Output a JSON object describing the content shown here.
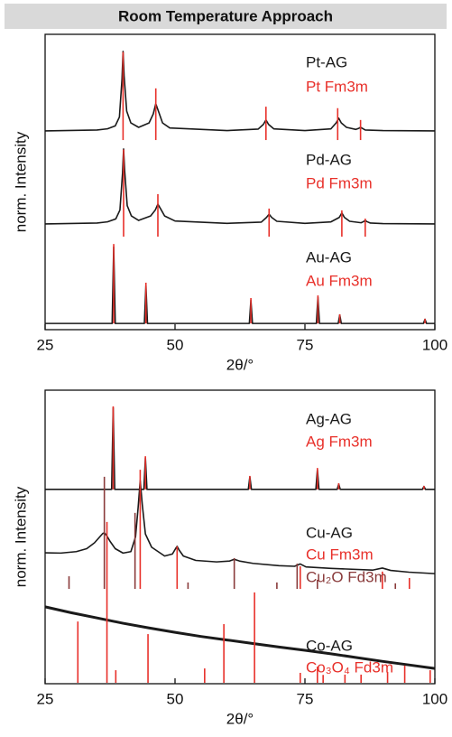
{
  "header": {
    "title": "Room Temperature Approach"
  },
  "chart_data": [
    {
      "type": "line",
      "xlabel": "2θ/°",
      "ylabel": "norm. Intensity",
      "xlim": [
        25,
        100
      ],
      "xticks": [
        25,
        50,
        75,
        100
      ],
      "ylim": [
        0,
        100
      ],
      "series": [
        {
          "name": "Pt-AG",
          "style": "line",
          "color": "#1a1a1a",
          "x": [
            25,
            35,
            37,
            38.5,
            39.3,
            39.8,
            40,
            40.2,
            40.7,
            41.5,
            43,
            45,
            45.8,
            46.3,
            46.8,
            47.6,
            49,
            60,
            66,
            67,
            67.5,
            68,
            69,
            75,
            80,
            81,
            81.5,
            82,
            83,
            84.8,
            85.4,
            85.7,
            86,
            86.6,
            90,
            100
          ],
          "values": [
            67.3,
            67.6,
            68,
            69,
            72,
            85,
            94.2,
            86,
            74,
            70,
            68.5,
            70,
            73,
            76.5,
            74,
            70,
            68.3,
            67.4,
            67.9,
            69.5,
            71,
            69.5,
            68,
            67.4,
            68,
            70,
            71.6,
            70,
            68.5,
            67.8,
            68.2,
            68.5,
            68.2,
            67.6,
            67.4,
            67.3
          ]
        },
        {
          "name": "Pt Fm3m",
          "style": "sticks",
          "color": "#e8302a",
          "base": 64.2,
          "x": [
            40,
            46.3,
            67.5,
            81.3,
            85.7
          ],
          "values": [
            94,
            81.7,
            75.5,
            75,
            71
          ]
        },
        {
          "name": "Pd-AG",
          "style": "line",
          "color": "#1a1a1a",
          "x": [
            25,
            35,
            37,
            38.6,
            39.4,
            39.9,
            40.1,
            40.3,
            40.8,
            41.6,
            43,
            45.3,
            46.2,
            46.7,
            47.2,
            48,
            50,
            60,
            66.6,
            67.6,
            68.1,
            68.6,
            69.6,
            75,
            80,
            81.6,
            82.1,
            82.6,
            83.6,
            85.8,
            86.3,
            86.6,
            86.9,
            87.6,
            90,
            100
          ],
          "values": [
            35.8,
            36.1,
            36.5,
            37.5,
            40.5,
            53,
            61.2,
            54,
            42,
            38.5,
            37,
            38.5,
            40.5,
            42.5,
            41,
            38.5,
            36.8,
            36,
            36.4,
            38,
            39.1,
            38,
            36.7,
            36,
            36.5,
            38,
            39.5,
            38,
            36.7,
            36.2,
            36.6,
            37,
            36.6,
            36.1,
            35.9,
            35.8
          ]
        },
        {
          "name": "Pd Fm3m",
          "style": "sticks",
          "color": "#e8302a",
          "base": 31.5,
          "x": [
            40.1,
            46.7,
            68.1,
            82.1,
            86.6
          ],
          "values": [
            61,
            45.9,
            41,
            40.4,
            37.6
          ]
        },
        {
          "name": "Au-AG",
          "style": "line",
          "color": "#1a1a1a",
          "x": [
            25,
            37.9,
            38.2,
            38.5,
            44.1,
            44.4,
            44.7,
            64.3,
            64.6,
            64.9,
            77.2,
            77.5,
            77.8,
            81.4,
            81.7,
            82,
            97.8,
            98.1,
            98.4,
            100
          ],
          "values": [
            2.1,
            2.1,
            28,
            2.1,
            2.1,
            15,
            2.1,
            2.1,
            10,
            2.1,
            2.1,
            11,
            2.1,
            2.1,
            5,
            2.1,
            2.1,
            3.5,
            2.1,
            2.1
          ]
        },
        {
          "name": "Au Fm3m",
          "style": "sticks",
          "color": "#e8302a",
          "base": 2.1,
          "x": [
            38.2,
            44.4,
            64.6,
            77.5,
            81.7,
            98.1
          ],
          "values": [
            29,
            15.9,
            10.7,
            11.6,
            5.2,
            3.7
          ]
        }
      ]
    },
    {
      "type": "line",
      "xlabel": "2θ/°",
      "ylabel": "norm. Intensity",
      "xlim": [
        25,
        100
      ],
      "xticks": [
        25,
        50,
        75,
        100
      ],
      "ylim": [
        0,
        100
      ],
      "series": [
        {
          "name": "Ag-AG",
          "style": "line",
          "color": "#1a1a1a",
          "x": [
            25,
            37.8,
            38.1,
            38.4,
            44,
            44.3,
            44.6,
            64.1,
            64.4,
            64.7,
            77.1,
            77.4,
            77.7,
            81.2,
            81.5,
            81.8,
            97.6,
            97.9,
            98.2,
            100
          ],
          "values": [
            66.2,
            66.2,
            94,
            66.2,
            66.2,
            77,
            66.2,
            66.2,
            70.5,
            66.2,
            66.2,
            73,
            66.2,
            66.2,
            68,
            66.2,
            66.2,
            67.2,
            66.2,
            66.2
          ]
        },
        {
          "name": "Ag Fm3m",
          "style": "sticks",
          "color": "#e8302a",
          "base": 66.2,
          "x": [
            38.1,
            44.3,
            64.4,
            77.4,
            81.5,
            97.9
          ],
          "values": [
            94.5,
            77.5,
            70.8,
            73.5,
            68.3,
            67.4
          ]
        },
        {
          "name": "Cu-AG",
          "style": "line",
          "color": "#1a1a1a",
          "x": [
            25,
            28,
            31,
            33,
            34.5,
            35.5,
            36.1,
            36.4,
            36.8,
            37.5,
            38.5,
            40,
            41.5,
            42.4,
            42.9,
            43.3,
            43.7,
            44.3,
            45.5,
            48,
            49.5,
            50.1,
            50.4,
            50.8,
            51.6,
            54,
            58,
            60.5,
            61.4,
            62.4,
            65,
            70,
            73,
            74.1,
            75.2,
            80,
            88,
            89.9,
            91.5,
            95,
            100
          ],
          "values": [
            44.6,
            44.5,
            45,
            46,
            48,
            50,
            51.2,
            51.4,
            50.6,
            48.5,
            46,
            44.5,
            45,
            50,
            60,
            69.2,
            61,
            51,
            46.5,
            43.5,
            44.2,
            46,
            46.8,
            45.5,
            43.5,
            42,
            41.5,
            41.8,
            42.4,
            41.8,
            41,
            40.2,
            40,
            40.8,
            39.8,
            39.3,
            38.7,
            39.4,
            38.6,
            38,
            37.5
          ]
        },
        {
          "name": "Cu Fm3m",
          "style": "sticks",
          "color": "#e8302a",
          "base": 32.3,
          "x": [
            43.3,
            50.4,
            74.1,
            89.9,
            95.1
          ],
          "values": [
            72.9,
            46.8,
            40,
            38.2,
            36
          ]
        },
        {
          "name": "Cu₂O Fd3m",
          "style": "sticks",
          "color": "#8a3b3b",
          "base": 32.3,
          "x": [
            29.6,
            36.4,
            42.3,
            52.5,
            61.4,
            69.6,
            73.5,
            77.4,
            92.4
          ],
          "values": [
            36.6,
            70.5,
            58.2,
            34.5,
            42.8,
            34.5,
            40.9,
            35.4,
            34.2
          ]
        },
        {
          "name": "Co-AG",
          "style": "line",
          "color": "#1a1a1a",
          "x": [
            25,
            30,
            35,
            40,
            45,
            50,
            55,
            60,
            65,
            70,
            75,
            80,
            85,
            90,
            95,
            100
          ],
          "values": [
            26.2,
            24.2,
            22.4,
            20.6,
            19,
            17.5,
            16.1,
            14.9,
            13.7,
            12.5,
            11.4,
            10.2,
            8.9,
            7.6,
            6.4,
            5.2
          ]
        },
        {
          "name": "Co₃O₄ Fd3m",
          "style": "sticks",
          "color": "#e8302a",
          "base": 0.3,
          "x": [
            31.3,
            36.9,
            38.6,
            44.8,
            55.7,
            59.4,
            65.3,
            74.1,
            77.4,
            78.5,
            82.7,
            85.8,
            90.9,
            94.2,
            99.1
          ],
          "values": [
            21.2,
            55.1,
            4.6,
            16.9,
            5.2,
            20.3,
            31.1,
            3.7,
            5.8,
            3,
            3.1,
            3.1,
            4,
            6.2,
            4.6
          ]
        }
      ]
    }
  ]
}
